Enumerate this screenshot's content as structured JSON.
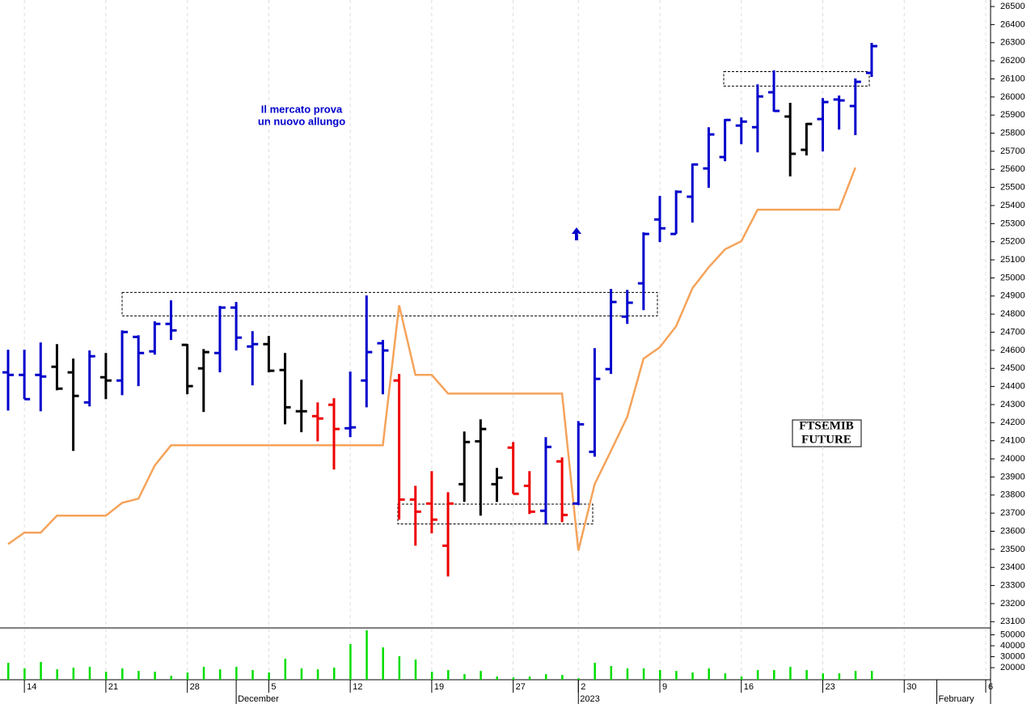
{
  "chart_data": {
    "type": "ohlc",
    "categories": [
      null,
      "14",
      null,
      null,
      null,
      null,
      "21",
      null,
      null,
      null,
      null,
      "28",
      null,
      null,
      null,
      null,
      "5",
      null,
      null,
      null,
      null,
      "12",
      null,
      null,
      null,
      null,
      "19",
      null,
      null,
      null,
      null,
      "27",
      null,
      null,
      null,
      "2",
      null,
      null,
      null,
      null,
      "9",
      null,
      null,
      null,
      null,
      "16",
      null,
      null,
      null,
      null,
      "23",
      null,
      null,
      null,
      null,
      "30",
      null,
      null,
      null,
      null,
      "6"
    ],
    "months": [
      null,
      null,
      null,
      null,
      null,
      null,
      null,
      null,
      null,
      null,
      null,
      null,
      null,
      null,
      "December",
      null,
      null,
      null,
      null,
      null,
      null,
      null,
      null,
      null,
      null,
      null,
      null,
      null,
      null,
      null,
      null,
      null,
      null,
      null,
      null,
      "2023",
      null,
      null,
      null,
      null,
      null,
      null,
      null,
      null,
      null,
      null,
      null,
      null,
      null,
      null,
      null,
      null,
      null,
      null,
      null,
      null,
      null,
      "February",
      null,
      null,
      null
    ],
    "open": [
      24478,
      24464,
      24464,
      24509,
      24478,
      24312,
      24451,
      24433,
      24674,
      24594,
      24746,
      24630,
      24500,
      24585,
      24836,
      24621,
      24634,
      24491,
      24263,
      24236,
      24299,
      24169,
      24433,
      24639,
      24433,
      23775,
      23753,
      23520,
      23860,
      24097,
      23860,
      24062,
      23851,
      23713,
      23986,
      23753,
      24039,
      24496,
      24786,
      24970,
      25323,
      25243,
      25449,
      25605,
      25668,
      25842,
      25833,
      26026,
      25892,
      25708,
      25878,
      25986,
      25950,
      26133,
      null,
      null,
      null,
      null,
      null,
      null,
      null
    ],
    "high": [
      24603,
      24603,
      24643,
      24634,
      24554,
      24599,
      24585,
      24710,
      24683,
      24760,
      24876,
      24634,
      24607,
      24845,
      24867,
      24706,
      24679,
      24585,
      24437,
      24312,
      24335,
      24482,
      24903,
      24657,
      24469,
      23851,
      23932,
      23816,
      24151,
      24218,
      23950,
      24093,
      23932,
      24120,
      24008,
      24209,
      24612,
      24939,
      24934,
      25252,
      25453,
      25484,
      25632,
      25833,
      25878,
      25887,
      26070,
      26147,
      25968,
      25856,
      25994,
      26008,
      26102,
      26299,
      null,
      null,
      null,
      null,
      null,
      null,
      null
    ],
    "low": [
      24267,
      24330,
      24263,
      24379,
      24044,
      24290,
      24330,
      24352,
      24402,
      24576,
      24657,
      24357,
      24259,
      24478,
      24599,
      24406,
      24478,
      24191,
      24147,
      24097,
      23941,
      24120,
      24285,
      24357,
      23664,
      23520,
      23588,
      23350,
      23762,
      23686,
      23762,
      23807,
      23695,
      23637,
      23650,
      23744,
      24012,
      24469,
      24746,
      24822,
      25198,
      25243,
      25306,
      25498,
      25645,
      25739,
      25694,
      25918,
      25561,
      25677,
      25699,
      25820,
      25789,
      26111,
      null,
      null,
      null,
      null,
      null,
      null,
      null
    ],
    "close": [
      24464,
      24330,
      24455,
      24388,
      24348,
      24567,
      24433,
      24701,
      24585,
      24746,
      24710,
      24402,
      24590,
      24836,
      24670,
      24634,
      24487,
      24285,
      24263,
      24223,
      24165,
      24174,
      24590,
      24599,
      23775,
      23708,
      23664,
      23753,
      24093,
      24165,
      23896,
      23807,
      23708,
      24066,
      23690,
      24191,
      24442,
      24867,
      24863,
      25243,
      25274,
      25476,
      25627,
      25793,
      25873,
      25864,
      26003,
      25923,
      25686,
      25851,
      25972,
      25981,
      26084,
      26281,
      null,
      null,
      null,
      null,
      null,
      null,
      null
    ],
    "bar_colors": [
      "#0000cc",
      "#0000cc",
      "#0000cc",
      "#000000",
      "#000000",
      "#0000cc",
      "#000000",
      "#0000cc",
      "#0000cc",
      "#0000cc",
      "#0000cc",
      "#000000",
      "#000000",
      "#0000cc",
      "#0000cc",
      "#0000cc",
      "#000000",
      "#000000",
      "#000000",
      "#ee0000",
      "#ee0000",
      "#0000cc",
      "#0000cc",
      "#0000cc",
      "#ee0000",
      "#ee0000",
      "#ee0000",
      "#ee0000",
      "#000000",
      "#000000",
      "#000000",
      "#ee0000",
      "#ee0000",
      "#0000cc",
      "#ee0000",
      "#0000cc",
      "#0000cc",
      "#0000cc",
      "#0000cc",
      "#0000cc",
      "#0000cc",
      "#0000cc",
      "#0000cc",
      "#0000cc",
      "#0000cc",
      "#0000cc",
      "#0000cc",
      "#0000cc",
      "#000000",
      "#000000",
      "#0000cc",
      "#0000cc",
      "#0000cc",
      "#0000cc",
      null,
      null,
      null,
      null,
      null,
      null,
      null
    ],
    "line": {
      "color": "#f5a35a",
      "values": [
        23529,
        23592,
        23592,
        23686,
        23686,
        23686,
        23686,
        23757,
        23780,
        23963,
        24075,
        24075,
        24075,
        24075,
        24075,
        24075,
        24075,
        24075,
        24075,
        24075,
        24075,
        24075,
        24075,
        24075,
        24849,
        24464,
        24464,
        24361,
        24361,
        24361,
        24361,
        24361,
        24361,
        24361,
        24361,
        23493,
        23860,
        24044,
        24232,
        24554,
        24617,
        24733,
        24943,
        25059,
        25158,
        25203,
        25377,
        25377,
        25377,
        25377,
        25377,
        25377,
        25610,
        null,
        null,
        null,
        null,
        null,
        null,
        null,
        null
      ]
    },
    "ylim": [
      23070,
      26536
    ],
    "yticks": [
      23100,
      23200,
      23300,
      23400,
      23500,
      23600,
      23700,
      23800,
      23900,
      24000,
      24100,
      24200,
      24300,
      24400,
      24500,
      24600,
      24700,
      24800,
      24900,
      25000,
      25100,
      25200,
      25300,
      25400,
      25500,
      25600,
      25700,
      25800,
      25900,
      26000,
      26100,
      26200,
      26300,
      26400,
      26500
    ],
    "zones": [
      {
        "low": 24790,
        "high": 24920
      },
      {
        "low": 23640,
        "high": 23750
      },
      {
        "low": 26060,
        "high": 26140
      }
    ],
    "volume": {
      "color": "#00dd00",
      "ylim": [
        9000,
        55500
      ],
      "yticks": [
        20000,
        30000,
        40000,
        50000
      ],
      "values": [
        24400,
        19300,
        25200,
        18500,
        20000,
        20700,
        16300,
        19300,
        17000,
        16300,
        12600,
        15600,
        20700,
        18500,
        20700,
        17800,
        15600,
        28100,
        19300,
        18500,
        20000,
        41500,
        54000,
        38500,
        30400,
        27400,
        16300,
        17800,
        14100,
        17000,
        11900,
        11100,
        11900,
        14100,
        13300,
        10400,
        24400,
        21500,
        19300,
        19300,
        17800,
        17000,
        15600,
        19300,
        14800,
        11900,
        17800,
        17800,
        20700,
        17800,
        14800,
        14800,
        17000,
        17000,
        null,
        null,
        null,
        null,
        null,
        null,
        null
      ]
    },
    "annotations": [
      "Il mercato prova",
      "un nuovo allungo"
    ],
    "label": [
      "FTSEMIB",
      "FUTURE"
    ],
    "grid": true
  }
}
